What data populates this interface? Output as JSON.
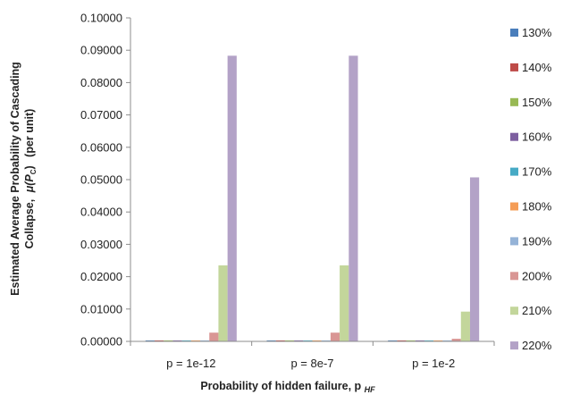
{
  "chart_data": {
    "type": "bar",
    "categories": [
      "p = 1e-12",
      "p = 8e-7",
      "p = 1e-2"
    ],
    "ylim": [
      0,
      0.1
    ],
    "yticks": [
      "0.00000",
      "0.01000",
      "0.02000",
      "0.03000",
      "0.04000",
      "0.05000",
      "0.06000",
      "0.07000",
      "0.08000",
      "0.09000",
      "0.10000"
    ],
    "xlabel": "Probability of hidden failure, p",
    "xlabel_sub": "HF",
    "ylabel_line1": "Estimated Average Probability  of Cascading",
    "ylabel_line2": "Collapse,",
    "ylabel_symbol": "μ(P",
    "ylabel_symbol_sub": "C",
    "ylabel_symbol_close": ")",
    "ylabel_unit": "(per unit)",
    "grid": false,
    "legend_position": "right",
    "series": [
      {
        "name": "130%",
        "color": "#4a7ebb",
        "values": [
          0.0003,
          0.0003,
          0.0003
        ]
      },
      {
        "name": "140%",
        "color": "#be4b48",
        "values": [
          0.0003,
          0.0003,
          0.0003
        ]
      },
      {
        "name": "150%",
        "color": "#98b954",
        "values": [
          0.0003,
          0.0003,
          0.0003
        ]
      },
      {
        "name": "160%",
        "color": "#7d5fa0",
        "values": [
          0.0003,
          0.0003,
          0.0003
        ]
      },
      {
        "name": "170%",
        "color": "#46aac5",
        "values": [
          0.0003,
          0.0003,
          0.0003
        ]
      },
      {
        "name": "180%",
        "color": "#f59d56",
        "values": [
          0.0003,
          0.0003,
          0.0003
        ]
      },
      {
        "name": "190%",
        "color": "#95b3d7",
        "values": [
          0.0003,
          0.0003,
          0.0003
        ]
      },
      {
        "name": "200%",
        "color": "#d99694",
        "values": [
          0.0027,
          0.0027,
          0.0008
        ]
      },
      {
        "name": "210%",
        "color": "#c3d69b",
        "values": [
          0.0235,
          0.0235,
          0.0092
        ]
      },
      {
        "name": "220%",
        "color": "#b3a2c7",
        "values": [
          0.0883,
          0.0883,
          0.0507
        ]
      }
    ]
  }
}
